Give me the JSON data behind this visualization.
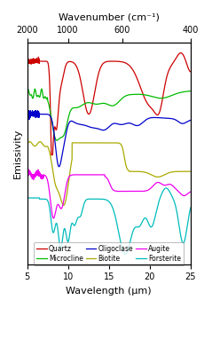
{
  "title_top": "Wavenumber (cm⁻¹)",
  "xlabel": "Wavelength (μm)",
  "ylabel": "Emissivity",
  "xlim": [
    5,
    25
  ],
  "wavenumber_ticks": [
    2000,
    1000,
    600,
    400
  ],
  "wavelength_ticks": [
    5,
    10,
    15,
    20,
    25
  ],
  "background_color": "#ffffff",
  "minerals": [
    "Quartz",
    "Microcline",
    "Oligoclase",
    "Biotite",
    "Augite",
    "Forsterite"
  ],
  "colors": {
    "Quartz": "#cc0000",
    "Microcline": "#00bb00",
    "Oligoclase": "#0000cc",
    "Biotite": "#aaaa00",
    "Augite": "#ee00ee",
    "Forsterite": "#00bbbb"
  },
  "linewidth": 0.9
}
